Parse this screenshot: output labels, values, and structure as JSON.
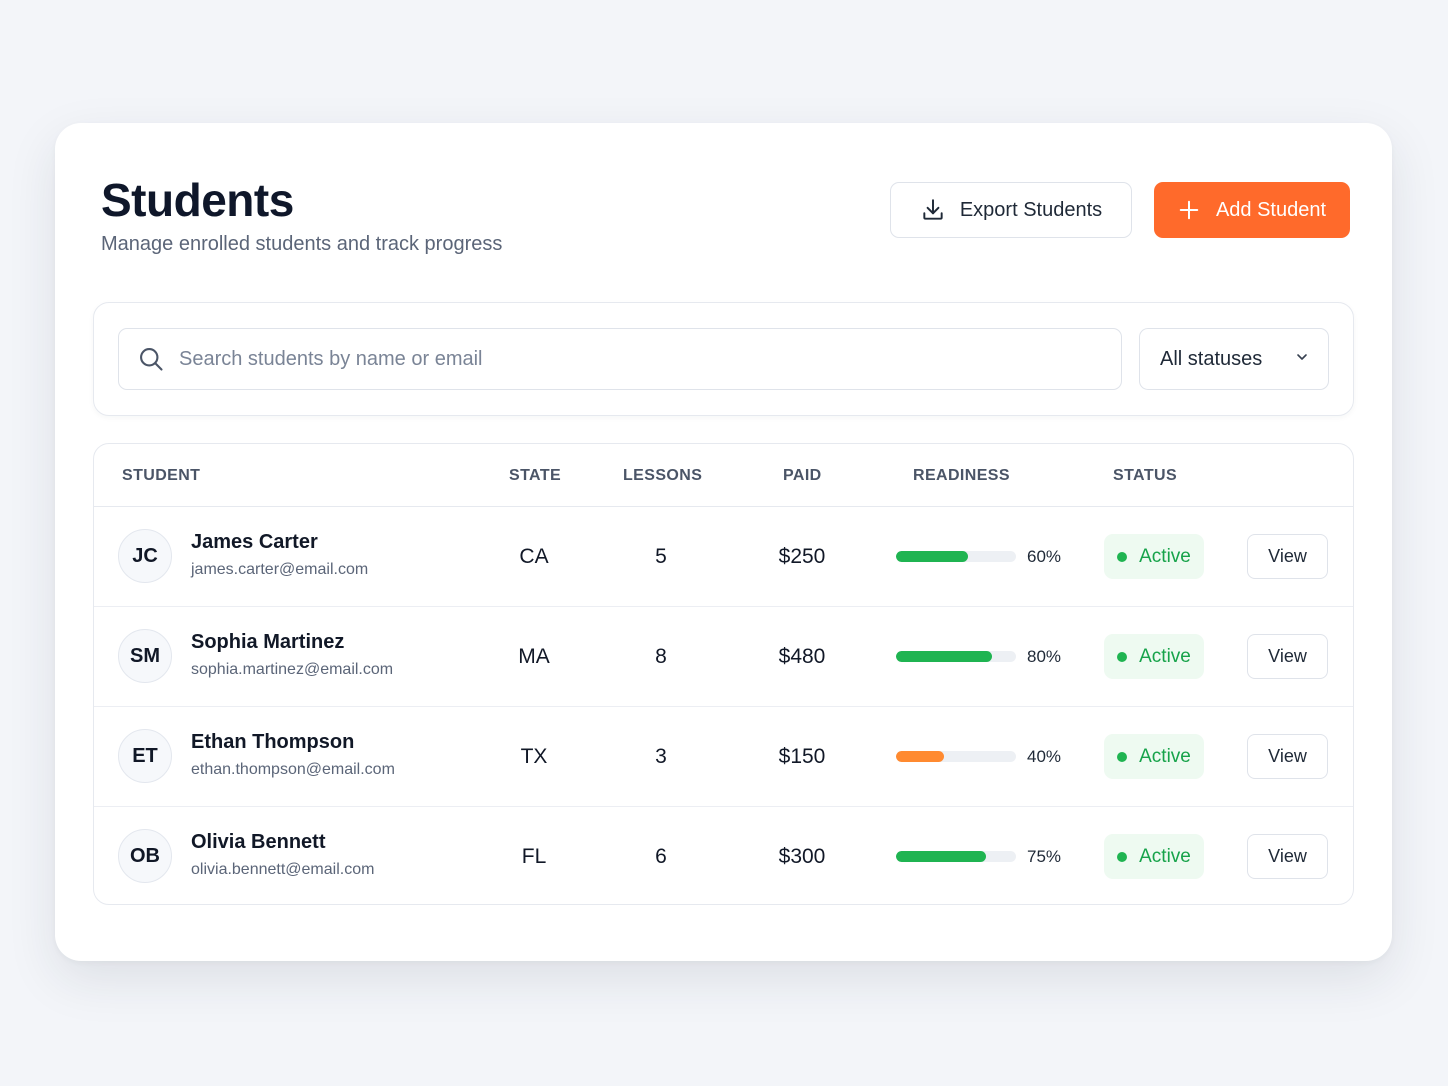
{
  "header": {
    "title": "Students",
    "subtitle": "Manage enrolled students and track progress",
    "export_label": "Export Students",
    "add_label": "Add Student",
    "accent_color": "#ff6a2b"
  },
  "filters": {
    "search_placeholder": "Search students by name or email",
    "status_selected": "All statuses"
  },
  "table": {
    "columns": {
      "student": "STUDENT",
      "state": "STATE",
      "lessons": "LESSONS",
      "paid": "PAID",
      "readiness": "READINESS",
      "status": "STATUS"
    },
    "rows": [
      {
        "initials": "JC",
        "name": "James Carter",
        "email": "james.carter@email.com",
        "state": "CA",
        "lessons": "5",
        "paid": "$250",
        "readiness": 60,
        "readiness_label": "60%",
        "readiness_color": "#1fb451",
        "status": "Active",
        "action": "View"
      },
      {
        "initials": "SM",
        "name": "Sophia Martinez",
        "email": "sophia.martinez@email.com",
        "state": "MA",
        "lessons": "8",
        "paid": "$480",
        "readiness": 80,
        "readiness_label": "80%",
        "readiness_color": "#1fb451",
        "status": "Active",
        "action": "View"
      },
      {
        "initials": "ET",
        "name": "Ethan Thompson",
        "email": "ethan.thompson@email.com",
        "state": "TX",
        "lessons": "3",
        "paid": "$150",
        "readiness": 40,
        "readiness_label": "40%",
        "readiness_color": "#ff8a30",
        "status": "Active",
        "action": "View"
      },
      {
        "initials": "OB",
        "name": "Olivia Bennett",
        "email": "olivia.bennett@email.com",
        "state": "FL",
        "lessons": "6",
        "paid": "$300",
        "readiness": 75,
        "readiness_label": "75%",
        "readiness_color": "#1fb451",
        "status": "Active",
        "action": "View"
      }
    ]
  }
}
